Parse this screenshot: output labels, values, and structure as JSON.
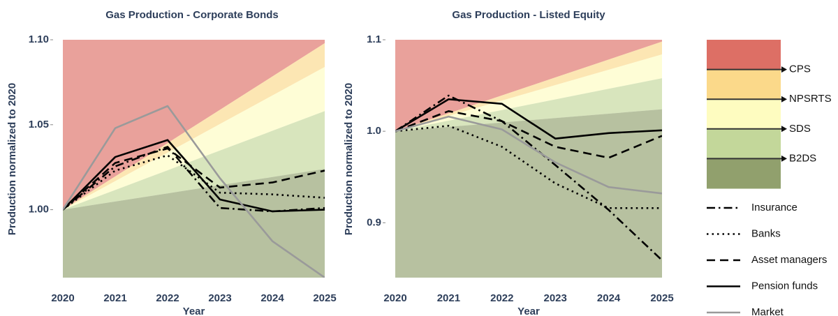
{
  "charts": [
    {
      "chart_data": {
        "type": "line",
        "title": "Gas Production - Corporate Bonds",
        "xlabel": "Year",
        "ylabel": "Production normalized to 2020",
        "x": [
          2020,
          2021,
          2022,
          2023,
          2024,
          2025
        ],
        "xlim": [
          2020,
          2025
        ],
        "xticks": [
          2020,
          2021,
          2022,
          2023,
          2024,
          2025
        ],
        "ylim": [
          0.96,
          1.1
        ],
        "yticks": [
          {
            "value": 1,
            "label": "1.00"
          },
          {
            "value": 1.05,
            "label": "1.05"
          },
          {
            "value": 1.1,
            "label": "1.10"
          }
        ],
        "series": [
          {
            "name": "Insurance",
            "color": "#000000",
            "dash": "dashdot",
            "values": [
              1,
              1.0255,
              1.037,
              1.001,
              0.999,
              1.001
            ]
          },
          {
            "name": "Banks",
            "color": "#000000",
            "dash": "dotted",
            "values": [
              1,
              1.023,
              1.032,
              1.01,
              1.009,
              1.007
            ]
          },
          {
            "name": "Asset managers",
            "color": "#000000",
            "dash": "dashed",
            "values": [
              1,
              1.0275,
              1.036,
              1.013,
              1.016,
              1.023
            ]
          },
          {
            "name": "Pension funds",
            "color": "#000000",
            "dash": "solid",
            "values": [
              1,
              1.031,
              1.041,
              1.006,
              0.999,
              1.0
            ]
          },
          {
            "name": "Market",
            "color": "#9a9a9a",
            "dash": "solid",
            "values": [
              1,
              1.048,
              1.061,
              1.0185,
              0.9815,
              0.96
            ]
          }
        ]
      }
    },
    {
      "chart_data": {
        "type": "line",
        "title": "Gas Production - Listed Equity",
        "xlabel": "Year",
        "ylabel": "Production normalized to 2020",
        "x": [
          2020,
          2021,
          2022,
          2023,
          2024,
          2025
        ],
        "xlim": [
          2020,
          2025
        ],
        "xticks": [
          2020,
          2021,
          2022,
          2023,
          2024,
          2025
        ],
        "ylim": [
          0.84,
          1.1
        ],
        "yticks": [
          {
            "value": 0.9,
            "label": "0.9"
          },
          {
            "value": 1,
            "label": "1.0"
          },
          {
            "value": 1.1,
            "label": "1.1"
          }
        ],
        "series": [
          {
            "name": "Insurance",
            "color": "#000000",
            "dash": "dashdot",
            "values": [
              1,
              1.039,
              1.011,
              0.963,
              0.914,
              0.859
            ]
          },
          {
            "name": "Banks",
            "color": "#000000",
            "dash": "dotted",
            "values": [
              1,
              1.006,
              0.983,
              0.943,
              0.916,
              0.916
            ]
          },
          {
            "name": "Asset managers",
            "color": "#000000",
            "dash": "dashed",
            "values": [
              1,
              1.022,
              1.011,
              0.983,
              0.971,
              0.995
            ]
          },
          {
            "name": "Pension funds",
            "color": "#000000",
            "dash": "solid",
            "values": [
              1,
              1.035,
              1.03,
              0.992,
              0.998,
              1.001
            ]
          },
          {
            "name": "Market",
            "color": "#9a9a9a",
            "dash": "solid",
            "values": [
              1,
              1.016,
              1.002,
              0.966,
              0.939,
              0.932
            ]
          }
        ]
      }
    }
  ],
  "scenarios": {
    "x": [
      2020,
      2021,
      2022,
      2023,
      2024,
      2025
    ],
    "band_colors": [
      "#dd6f65",
      "#fbd98a",
      "#fefcc0",
      "#c3d79a",
      "#91a06d"
    ],
    "lines": [
      {
        "name": "CPS",
        "values": [
          1,
          1.0196,
          1.0392,
          1.0588,
          1.0784,
          1.098
        ]
      },
      {
        "name": "NPSRTS",
        "values": [
          1,
          1.0168,
          1.0336,
          1.0504,
          1.0672,
          1.084
        ]
      },
      {
        "name": "SDS",
        "values": [
          1,
          1.0116,
          1.0232,
          1.0348,
          1.0464,
          1.058
        ]
      },
      {
        "name": "B2DS",
        "values": [
          1,
          1.0048,
          1.0096,
          1.0144,
          1.0192,
          1.024
        ]
      }
    ]
  }
}
